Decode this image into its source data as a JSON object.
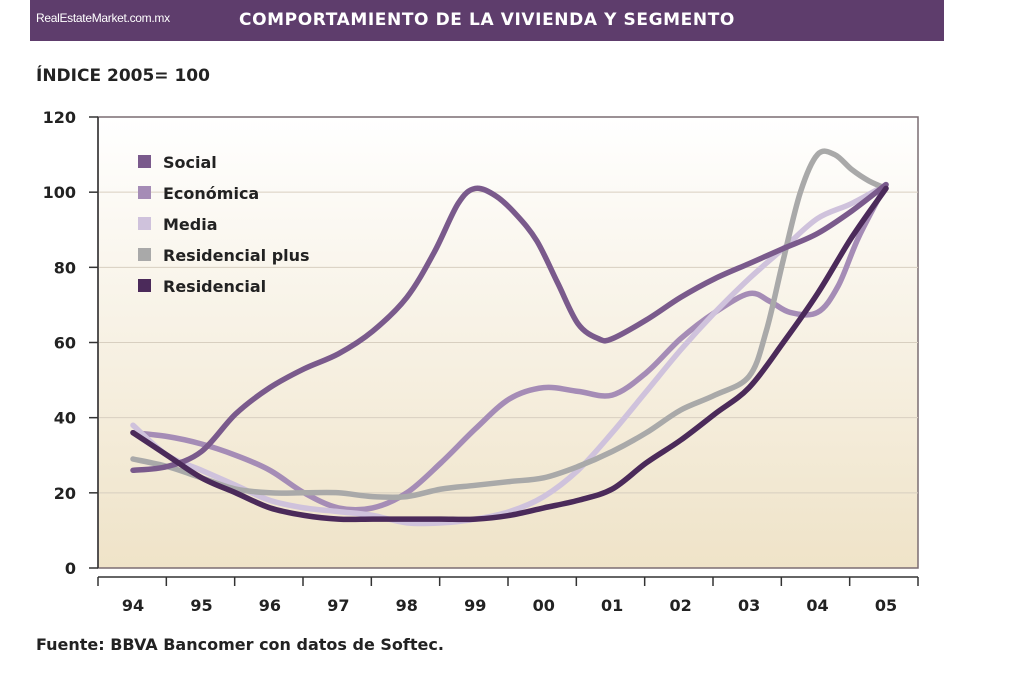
{
  "header": {
    "brand": "RealEstateMarket.com.mx",
    "title": "COMPORTAMIENTO DE LA VIVIENDA Y SEGMENTO"
  },
  "subtitle": "ÍNDICE 2005= 100",
  "source": "Fuente: BBVA Bancomer con datos de Softec.",
  "colors": {
    "header_bg": "#5e3d6c",
    "plot_bg_top": "#ffffff",
    "plot_bg_bottom": "#efe3c8"
  },
  "chart_data": {
    "type": "line",
    "title": "COMPORTAMIENTO DE LA VIVIENDA Y SEGMENTO",
    "ylabel": "ÍNDICE 2005= 100",
    "xlabel": "",
    "categories": [
      "94",
      "95",
      "96",
      "97",
      "98",
      "99",
      "00",
      "01",
      "02",
      "03",
      "04",
      "05"
    ],
    "ylim": [
      0,
      120
    ],
    "yticks": [
      0,
      20,
      40,
      60,
      80,
      100,
      120
    ],
    "grid": true,
    "legend_position": "top-left",
    "series": [
      {
        "name": "Social",
        "color": "#7a5a8c",
        "x": [
          94,
          94.5,
          95,
          95.5,
          96,
          96.5,
          97,
          97.5,
          98,
          98.4,
          98.75,
          99,
          99.3,
          99.6,
          99.9,
          100.2,
          100.5,
          100.8,
          101,
          101.5,
          102,
          102.5,
          103,
          103.5,
          104,
          104.5,
          105
        ],
        "y": [
          26,
          27,
          31,
          41,
          48,
          53,
          57,
          63,
          72,
          84,
          97,
          101,
          99,
          94,
          87,
          76,
          65,
          61,
          61,
          66,
          72,
          77,
          81,
          85,
          89,
          95,
          102
        ]
      },
      {
        "name": "Económica",
        "color": "#a58cb6",
        "x": [
          94,
          94.5,
          95,
          95.5,
          96,
          96.5,
          97,
          97.5,
          98,
          98.5,
          99,
          99.5,
          100,
          100.5,
          101,
          101.5,
          102,
          102.5,
          103,
          103.3,
          103.6,
          104,
          104.3,
          104.6,
          105
        ],
        "y": [
          36,
          35,
          33,
          30,
          26,
          20,
          16,
          16,
          20,
          28,
          37,
          45,
          48,
          47,
          46,
          52,
          61,
          68,
          73,
          71,
          68,
          68,
          75,
          88,
          102
        ]
      },
      {
        "name": "Media",
        "color": "#cfc2dc",
        "x": [
          94,
          94.5,
          95,
          95.5,
          96,
          96.5,
          97,
          97.5,
          98,
          98.5,
          99,
          99.5,
          100,
          100.5,
          101,
          101.5,
          102,
          102.5,
          103,
          103.5,
          104,
          104.5,
          105
        ],
        "y": [
          38,
          30,
          26,
          22,
          18,
          16,
          15,
          14,
          12,
          12,
          13,
          15,
          19,
          26,
          36,
          47,
          58,
          68,
          77,
          85,
          93,
          97,
          102
        ]
      },
      {
        "name": "Residencial plus",
        "color": "#a9a9a9",
        "x": [
          94,
          94.5,
          95,
          95.5,
          96,
          96.5,
          97,
          97.5,
          98,
          98.5,
          99,
          99.5,
          100,
          100.5,
          101,
          101.5,
          102,
          102.5,
          103,
          103.25,
          103.5,
          103.75,
          104,
          104.25,
          104.5,
          104.75,
          105
        ],
        "y": [
          29,
          27,
          24,
          21,
          20,
          20,
          20,
          19,
          19,
          21,
          22,
          23,
          24,
          27,
          31,
          36,
          42,
          46,
          51,
          63,
          82,
          100,
          110,
          110,
          106,
          103,
          101
        ]
      },
      {
        "name": "Residencial",
        "color": "#4b2a5a",
        "x": [
          94,
          94.5,
          95,
          95.5,
          96,
          96.5,
          97,
          97.5,
          98,
          98.5,
          99,
          99.5,
          100,
          100.5,
          101,
          101.5,
          102,
          102.5,
          103,
          103.5,
          104,
          104.5,
          105
        ],
        "y": [
          36,
          30,
          24,
          20,
          16,
          14,
          13,
          13,
          13,
          13,
          13,
          14,
          16,
          18,
          21,
          28,
          34,
          41,
          48,
          60,
          73,
          88,
          101
        ]
      }
    ]
  }
}
